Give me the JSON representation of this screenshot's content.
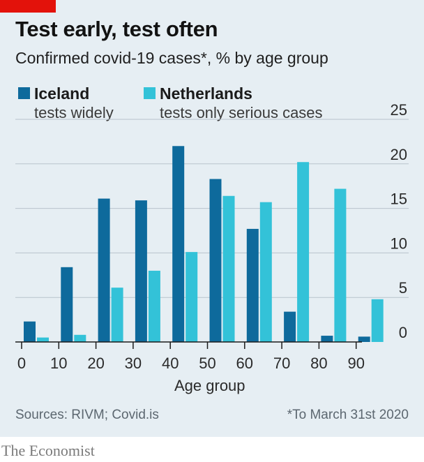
{
  "header": {
    "title": "Test early, test often",
    "subtitle": "Confirmed covid-19 cases*, % by age group"
  },
  "legend": [
    {
      "name": "Iceland",
      "description": "tests widely",
      "color": "#0e6a9c"
    },
    {
      "name": "Netherlands",
      "description": "tests only serious cases",
      "color": "#33c2d8"
    }
  ],
  "chart_data": {
    "type": "bar",
    "title": "Test early, test often",
    "subtitle": "Confirmed covid-19 cases*, % by age group",
    "xlabel": "Age group",
    "ylabel": "",
    "x_ticks": [
      "0",
      "10",
      "20",
      "30",
      "40",
      "50",
      "60",
      "70",
      "80",
      "90"
    ],
    "y_ticks": [
      "25",
      "20",
      "15",
      "10",
      "5",
      "0"
    ],
    "ylim": [
      0,
      25
    ],
    "grid": "horizontal",
    "y_axis_side": "right",
    "legend_position": "top-left",
    "categories": [
      "0-9",
      "10-19",
      "20-29",
      "30-39",
      "40-49",
      "50-59",
      "60-69",
      "70-79",
      "80-89",
      "90+"
    ],
    "series": [
      {
        "name": "Iceland",
        "color": "#0e6a9c",
        "values": [
          2.3,
          8.4,
          16.1,
          15.9,
          22.0,
          18.3,
          12.7,
          3.4,
          0.7,
          0.6
        ]
      },
      {
        "name": "Netherlands",
        "color": "#33c2d8",
        "values": [
          0.5,
          0.8,
          6.1,
          8.0,
          10.1,
          16.4,
          15.7,
          20.2,
          17.2,
          4.8
        ]
      }
    ]
  },
  "footer": {
    "source": "Sources: RIVM; Covid.is",
    "footnote": "*To March 31st 2020",
    "brand": "The Economist"
  },
  "colors": {
    "accent": "#e3120b",
    "background": "#e6eef3",
    "gridline": "#b8c3cc"
  }
}
